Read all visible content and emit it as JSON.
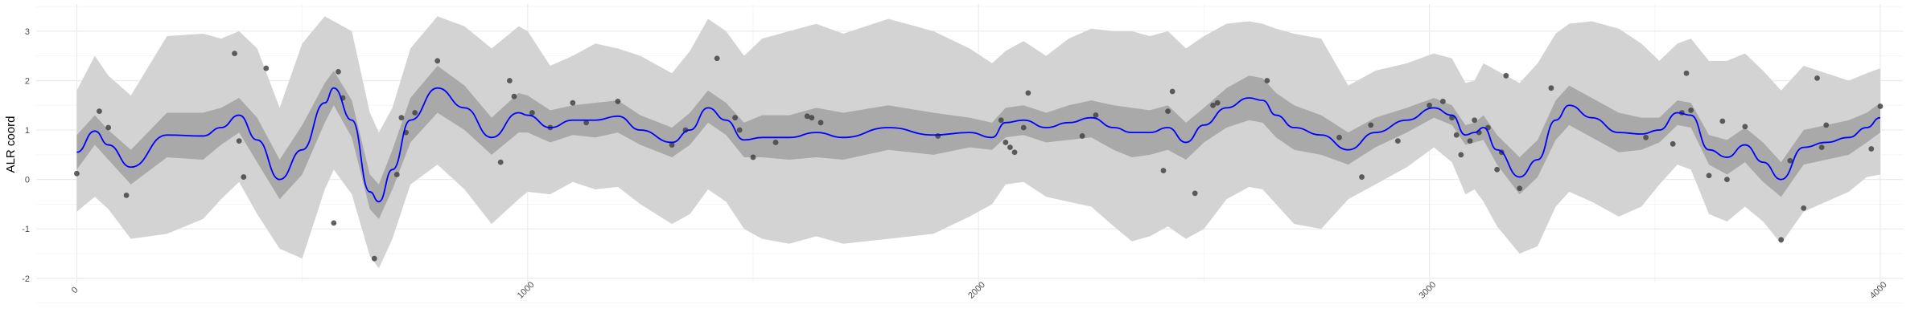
{
  "chart_data": {
    "type": "line",
    "title": "",
    "xlabel": "",
    "ylabel": "ALR coord",
    "xlim": [
      -90,
      4050
    ],
    "ylim": [
      -2.1,
      3.55
    ],
    "grid": true,
    "legend": "none",
    "x_ticks": [
      {
        "value": 0,
        "label": "0"
      },
      {
        "value": 1000,
        "label": "1000"
      },
      {
        "value": 2000,
        "label": "2000"
      },
      {
        "value": 3000,
        "label": "3000"
      },
      {
        "value": 4000,
        "label": "4000"
      }
    ],
    "y_ticks": [
      {
        "value": -2,
        "label": "-2"
      },
      {
        "value": -1,
        "label": "-1"
      },
      {
        "value": 0,
        "label": "0"
      },
      {
        "value": 1,
        "label": "1"
      },
      {
        "value": 2,
        "label": "2"
      },
      {
        "value": 3,
        "label": "3"
      }
    ],
    "colors": {
      "mean_line": "#0000ff",
      "inner_band": "#a9a9a9",
      "outer_band": "#d3d3d3",
      "points": "#444444",
      "grid_major": "#ebebeb",
      "grid_minor": "#f5f5f5",
      "tick_text": "#4d4d4d"
    },
    "series": [
      {
        "kind": "mean",
        "x": [
          0,
          40,
          70,
          120,
          200,
          280,
          320,
          360,
          400,
          450,
          500,
          550,
          570,
          610,
          650,
          670,
          700,
          740,
          800,
          860,
          920,
          980,
          1000,
          1050,
          1100,
          1150,
          1200,
          1250,
          1320,
          1360,
          1400,
          1440,
          1480,
          1520,
          1580,
          1640,
          1700,
          1800,
          1900,
          1980,
          2030,
          2060,
          2100,
          2150,
          2200,
          2250,
          2300,
          2340,
          2380,
          2420,
          2460,
          2500,
          2550,
          2600,
          2630,
          2660,
          2700,
          2760,
          2820,
          2880,
          2950,
          3010,
          3050,
          3080,
          3100,
          3120,
          3150,
          3200,
          3240,
          3280,
          3310,
          3360,
          3420,
          3470,
          3510,
          3550,
          3580,
          3620,
          3660,
          3700,
          3740,
          3780,
          3830,
          3880,
          3930,
          3970,
          4000
        ],
        "values": [
          0.55,
          0.98,
          0.7,
          0.25,
          0.9,
          0.88,
          1.05,
          1.3,
          0.8,
          0.0,
          0.6,
          1.55,
          1.85,
          1.2,
          -0.25,
          -0.45,
          0.2,
          1.2,
          1.85,
          1.45,
          0.85,
          1.35,
          1.3,
          1.05,
          1.2,
          1.2,
          1.28,
          1.0,
          0.75,
          1.0,
          1.45,
          1.2,
          0.8,
          0.85,
          0.85,
          0.95,
          0.85,
          1.05,
          0.9,
          0.95,
          0.85,
          1.15,
          1.2,
          1.05,
          1.15,
          1.25,
          1.05,
          0.95,
          0.95,
          1.05,
          0.75,
          1.1,
          1.45,
          1.65,
          1.6,
          1.3,
          1.05,
          0.9,
          0.6,
          0.95,
          1.2,
          1.45,
          1.3,
          0.9,
          0.95,
          1.05,
          0.6,
          0.05,
          0.4,
          1.2,
          1.5,
          1.25,
          0.95,
          0.92,
          1.0,
          1.35,
          1.3,
          0.6,
          0.45,
          0.7,
          0.35,
          0.0,
          0.65,
          0.75,
          0.85,
          1.05,
          1.25
        ]
      },
      {
        "kind": "inner_band",
        "x": [
          0,
          40,
          70,
          120,
          200,
          280,
          320,
          360,
          400,
          450,
          500,
          550,
          570,
          610,
          650,
          670,
          700,
          740,
          800,
          860,
          920,
          980,
          1000,
          1050,
          1100,
          1150,
          1200,
          1250,
          1320,
          1360,
          1400,
          1440,
          1480,
          1520,
          1580,
          1640,
          1700,
          1800,
          1900,
          1980,
          2030,
          2060,
          2100,
          2150,
          2200,
          2250,
          2300,
          2340,
          2380,
          2420,
          2460,
          2500,
          2550,
          2600,
          2630,
          2660,
          2700,
          2760,
          2820,
          2880,
          2950,
          3010,
          3050,
          3080,
          3100,
          3120,
          3150,
          3200,
          3240,
          3280,
          3310,
          3360,
          3420,
          3470,
          3510,
          3550,
          3580,
          3620,
          3660,
          3700,
          3740,
          3780,
          3830,
          3880,
          3930,
          3970,
          4000
        ],
        "lower": [
          0.2,
          0.7,
          0.4,
          -0.1,
          0.45,
          0.4,
          0.7,
          0.95,
          0.35,
          -0.4,
          0.1,
          1.15,
          1.5,
          0.85,
          -0.6,
          -0.8,
          -0.2,
          0.75,
          1.35,
          1.0,
          0.5,
          0.95,
          0.95,
          0.75,
          0.9,
          0.85,
          0.95,
          0.7,
          0.45,
          0.7,
          1.15,
          0.9,
          0.45,
          0.45,
          0.4,
          0.45,
          0.4,
          0.6,
          0.5,
          0.65,
          0.6,
          0.85,
          0.9,
          0.75,
          0.8,
          0.85,
          0.6,
          0.45,
          0.5,
          0.6,
          0.4,
          0.75,
          1.05,
          1.2,
          1.15,
          0.85,
          0.6,
          0.5,
          0.3,
          0.65,
          0.95,
          1.25,
          1.1,
          0.7,
          0.75,
          0.8,
          0.3,
          -0.3,
          0.05,
          0.8,
          1.1,
          0.85,
          0.55,
          0.6,
          0.75,
          1.1,
          1.05,
          0.3,
          0.1,
          0.35,
          -0.05,
          -0.35,
          0.3,
          0.4,
          0.5,
          0.75,
          0.95
        ],
        "upper": [
          0.9,
          1.3,
          1.0,
          0.6,
          1.35,
          1.35,
          1.45,
          1.65,
          1.25,
          0.4,
          1.1,
          1.95,
          2.2,
          1.6,
          0.1,
          -0.1,
          0.6,
          1.65,
          2.3,
          1.9,
          1.25,
          1.75,
          1.7,
          1.4,
          1.5,
          1.55,
          1.6,
          1.3,
          1.05,
          1.35,
          1.8,
          1.55,
          1.15,
          1.3,
          1.3,
          1.45,
          1.35,
          1.5,
          1.35,
          1.25,
          1.15,
          1.45,
          1.5,
          1.35,
          1.5,
          1.6,
          1.5,
          1.45,
          1.4,
          1.5,
          1.15,
          1.45,
          1.85,
          2.1,
          2.05,
          1.75,
          1.5,
          1.3,
          0.95,
          1.25,
          1.45,
          1.65,
          1.5,
          1.1,
          1.15,
          1.3,
          0.9,
          0.45,
          0.8,
          1.6,
          1.9,
          1.65,
          1.35,
          1.25,
          1.25,
          1.6,
          1.55,
          0.9,
          0.8,
          1.05,
          0.75,
          0.35,
          1.0,
          1.1,
          1.2,
          1.35,
          1.55
        ]
      },
      {
        "kind": "outer_band",
        "x": [
          0,
          40,
          70,
          120,
          200,
          280,
          320,
          360,
          400,
          450,
          500,
          550,
          570,
          610,
          650,
          670,
          700,
          740,
          800,
          860,
          920,
          980,
          1000,
          1050,
          1100,
          1150,
          1200,
          1250,
          1320,
          1360,
          1400,
          1440,
          1480,
          1520,
          1580,
          1640,
          1700,
          1800,
          1900,
          1980,
          2030,
          2060,
          2100,
          2150,
          2200,
          2250,
          2300,
          2340,
          2380,
          2420,
          2460,
          2500,
          2550,
          2600,
          2630,
          2660,
          2700,
          2760,
          2820,
          2880,
          2950,
          3010,
          3050,
          3080,
          3100,
          3120,
          3150,
          3200,
          3240,
          3280,
          3310,
          3360,
          3420,
          3470,
          3510,
          3550,
          3580,
          3620,
          3660,
          3700,
          3740,
          3780,
          3830,
          3880,
          3930,
          3970,
          4000
        ],
        "lower": [
          -0.65,
          -0.35,
          -0.6,
          -1.2,
          -1.1,
          -0.8,
          -0.4,
          -0.05,
          -0.7,
          -1.4,
          -1.6,
          -0.2,
          0.2,
          -0.3,
          -1.55,
          -1.8,
          -1.2,
          -0.1,
          0.3,
          -0.2,
          -0.9,
          -0.4,
          -0.25,
          -0.3,
          -0.05,
          -0.2,
          -0.15,
          -0.5,
          -0.9,
          -0.7,
          -0.2,
          -0.45,
          -1.0,
          -1.2,
          -1.3,
          -1.15,
          -1.3,
          -1.2,
          -1.1,
          -0.75,
          -0.5,
          -0.1,
          -0.05,
          -0.35,
          -0.45,
          -0.55,
          -0.95,
          -1.25,
          -1.15,
          -0.95,
          -1.2,
          -1.0,
          -0.4,
          -0.15,
          -0.2,
          -0.5,
          -0.9,
          -1.0,
          -0.4,
          -0.1,
          0.25,
          0.65,
          0.35,
          -0.3,
          -0.2,
          -0.45,
          -0.95,
          -1.5,
          -1.35,
          -0.55,
          -0.25,
          -0.45,
          -0.75,
          -0.55,
          -0.1,
          0.3,
          0.2,
          -0.7,
          -0.85,
          -0.55,
          -0.85,
          -1.3,
          -0.65,
          -0.45,
          -0.25,
          0.05,
          0.1
        ],
        "upper": [
          1.8,
          2.5,
          2.1,
          1.7,
          2.9,
          2.95,
          2.85,
          3.0,
          2.65,
          1.45,
          2.75,
          3.3,
          3.2,
          3.0,
          1.35,
          0.95,
          1.45,
          2.65,
          3.3,
          3.1,
          2.65,
          3.1,
          3.0,
          2.3,
          2.5,
          2.75,
          2.65,
          2.5,
          2.15,
          2.6,
          3.25,
          3.0,
          2.5,
          2.85,
          3.0,
          3.15,
          2.95,
          3.25,
          3.0,
          2.65,
          2.35,
          2.6,
          2.8,
          2.5,
          2.85,
          3.05,
          3.0,
          3.0,
          2.9,
          3.0,
          2.65,
          2.9,
          3.15,
          3.2,
          3.15,
          3.05,
          2.95,
          2.85,
          1.9,
          2.2,
          2.35,
          2.55,
          2.45,
          1.95,
          2.0,
          2.35,
          2.2,
          1.95,
          2.35,
          2.95,
          3.15,
          3.2,
          3.05,
          2.75,
          2.4,
          2.75,
          2.85,
          2.4,
          2.4,
          2.55,
          2.2,
          1.8,
          2.3,
          2.15,
          2.0,
          2.15,
          2.25
        ]
      },
      {
        "kind": "points",
        "x": [
          0,
          50,
          70,
          110,
          350,
          360,
          370,
          420,
          570,
          580,
          590,
          660,
          710,
          720,
          730,
          750,
          800,
          940,
          960,
          970,
          1010,
          1050,
          1100,
          1130,
          1200,
          1320,
          1350,
          1420,
          1460,
          1470,
          1500,
          1550,
          1620,
          1630,
          1650,
          1910,
          2050,
          2060,
          2070,
          2080,
          2100,
          2110,
          2230,
          2260,
          2410,
          2420,
          2430,
          2480,
          2520,
          2530,
          2640,
          2800,
          2850,
          2870,
          2930,
          3000,
          3030,
          3050,
          3060,
          3070,
          3090,
          3100,
          3110,
          3130,
          3150,
          3160,
          3170,
          3200,
          3270,
          3480,
          3540,
          3560,
          3570,
          3580,
          3620,
          3650,
          3660,
          3700,
          3780,
          3800,
          3830,
          3860,
          3870,
          3880,
          3980,
          4000
        ],
        "values": [
          0.12,
          1.38,
          1.05,
          -0.32,
          2.55,
          0.78,
          0.05,
          2.25,
          -0.88,
          2.18,
          1.65,
          -1.6,
          0.1,
          1.25,
          0.95,
          1.35,
          2.4,
          0.35,
          2.0,
          1.68,
          1.35,
          1.05,
          1.55,
          1.15,
          1.58,
          0.7,
          1.0,
          2.45,
          1.25,
          1.0,
          0.45,
          0.75,
          1.28,
          1.25,
          1.15,
          0.88,
          1.2,
          0.75,
          0.65,
          0.55,
          1.05,
          1.75,
          0.88,
          1.3,
          0.18,
          1.38,
          1.78,
          -0.28,
          1.5,
          1.55,
          2.0,
          0.85,
          0.05,
          1.1,
          0.78,
          1.5,
          1.58,
          1.25,
          0.9,
          0.5,
          0.78,
          1.2,
          0.95,
          1.05,
          0.2,
          0.55,
          2.1,
          -0.18,
          1.85,
          0.85,
          0.72,
          1.35,
          2.15,
          1.4,
          0.08,
          1.18,
          0.0,
          1.07,
          -1.22,
          0.38,
          -0.58,
          2.05,
          0.65,
          1.1,
          0.62,
          1.48
        ]
      }
    ]
  }
}
